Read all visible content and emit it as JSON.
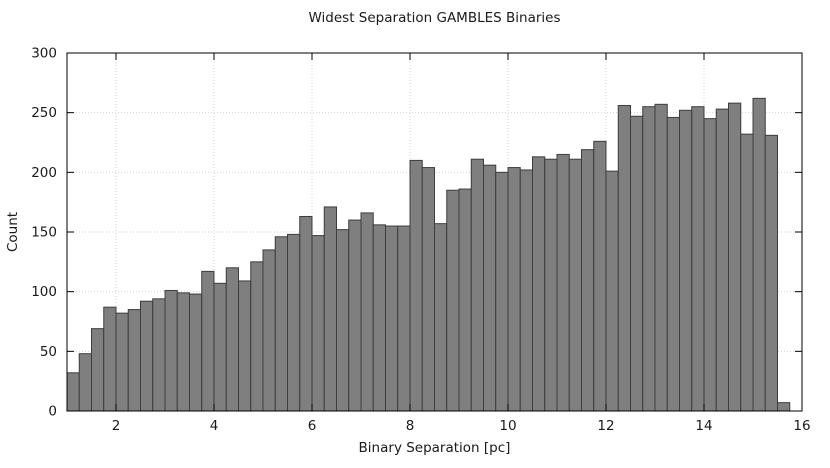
{
  "chart_data": {
    "type": "bar",
    "subtype": "histogram",
    "title": "Widest Separation GAMBLES Binaries",
    "xlabel": "Binary Separation [pc]",
    "ylabel": "Count",
    "xlim": [
      1,
      16
    ],
    "ylim": [
      0,
      300
    ],
    "x_ticks": [
      2,
      4,
      6,
      8,
      10,
      12,
      14,
      16
    ],
    "y_ticks": [
      0,
      50,
      100,
      150,
      200,
      250,
      300
    ],
    "bin_start": 1.0,
    "bin_width": 0.25,
    "values": [
      32,
      48,
      69,
      87,
      82,
      85,
      92,
      94,
      101,
      99,
      98,
      117,
      107,
      120,
      109,
      125,
      135,
      146,
      148,
      163,
      147,
      171,
      152,
      160,
      166,
      156,
      155,
      155,
      210,
      204,
      157,
      185,
      186,
      211,
      206,
      200,
      204,
      202,
      213,
      211,
      215,
      211,
      219,
      226,
      201,
      256,
      247,
      255,
      257,
      246,
      252,
      255,
      245,
      253,
      258,
      232,
      262,
      231,
      7
    ],
    "grid": true,
    "legend": null,
    "colors": {
      "bar_fill": "#7f7f7f",
      "bar_outline": "#3d3d3d",
      "grid_line": "#d2d2d2",
      "axis": "#000000",
      "text": "#1a1a1a",
      "background": "#ffffff"
    }
  }
}
